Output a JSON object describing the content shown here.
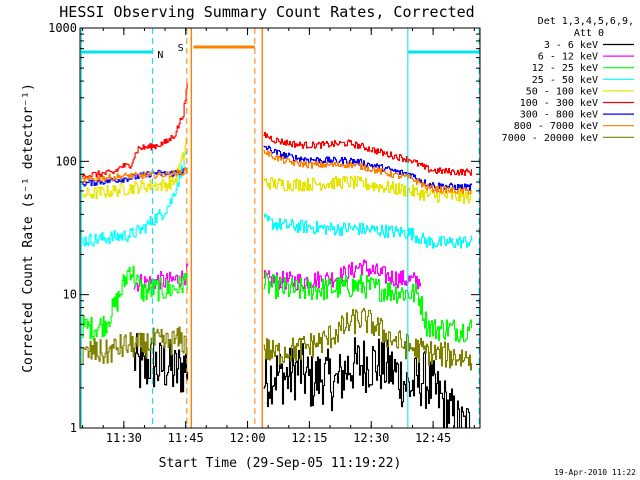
{
  "chart_data": {
    "type": "line",
    "title": "HESSI Observing Summary Count Rates, Corrected",
    "xlabel": "Start Time (29-Sep-05 11:19:22)",
    "ylabel": "Corrected Count Rate (s⁻¹ detector⁻¹)",
    "x_unit": "minutes after 11:19:22",
    "xlim": [
      0,
      97
    ],
    "ylim": [
      1,
      1000
    ],
    "yscale": "log",
    "grid": false,
    "legend_position": "right",
    "legend_header": [
      "Det 1,3,4,5,6,9,",
      "Att 0"
    ],
    "xticks": [
      {
        "label": "11:30",
        "x": 10.63
      },
      {
        "label": "11:45",
        "x": 25.63
      },
      {
        "label": "12:00",
        "x": 40.63
      },
      {
        "label": "12:15",
        "x": 55.63
      },
      {
        "label": "12:30",
        "x": 70.63
      },
      {
        "label": "12:45",
        "x": 85.63
      }
    ],
    "yticks": [
      {
        "label": "1",
        "y": 1
      },
      {
        "label": "10",
        "y": 10
      },
      {
        "label": "100",
        "y": 100
      },
      {
        "label": "1000",
        "y": 1000
      }
    ],
    "annotations": [
      {
        "text": "N",
        "x": 19.5,
        "y": 640,
        "color": "#00e5e5"
      },
      {
        "text": "S",
        "x": 24.4,
        "y": 720,
        "color": "#ff8000"
      }
    ],
    "night_markers": {
      "color": "#00e5e5",
      "solid_x": [
        0.3,
        79.5
      ],
      "dashed_x": [
        17.6,
        96.8
      ],
      "bars": [
        {
          "x": [
            0.3,
            17.6
          ],
          "y": 660
        },
        {
          "x": [
            79.5,
            96.8
          ],
          "y": 660
        }
      ]
    },
    "saa_markers": {
      "color": "#ff8000",
      "solid_x": [
        27.0,
        44.2
      ],
      "dashed_x": [
        25.9,
        42.4
      ],
      "bar": {
        "x": [
          27.5,
          42.4
        ],
        "y": 720
      }
    },
    "series": [
      {
        "name": "3 - 6 keV",
        "color": "#000000",
        "segments": [
          {
            "x": [
              13,
              15,
              17,
              19,
              21,
              23,
              26.2
            ],
            "y": [
              3.4,
              2.6,
              3.2,
              2.8,
              3.0,
              2.6,
              3.0
            ]
          },
          {
            "x": [
              44.5,
              47,
              50,
              53,
              56,
              59,
              62,
              65,
              68,
              71,
              74,
              77,
              80,
              83,
              86,
              89,
              92,
              95
            ],
            "y": [
              2.2,
              2.6,
              2.4,
              2.8,
              2.2,
              2.5,
              2.1,
              2.9,
              3.0,
              3.1,
              2.9,
              2.5,
              2.0,
              2.4,
              1.9,
              1.4,
              1.0,
              1.0
            ]
          }
        ]
      },
      {
        "name": "6 - 12 keV",
        "color": "#ff00ff",
        "segments": [
          {
            "x": [
              13,
              15,
              17,
              19,
              21,
              23,
              25,
              26.2
            ],
            "y": [
              12.0,
              12.5,
              12.3,
              12.8,
              12.5,
              12.9,
              13.5,
              15.0
            ]
          },
          {
            "x": [
              44.5,
              47,
              50,
              53,
              56,
              59,
              62,
              65,
              68,
              71,
              74,
              77,
              80,
              82.8
            ],
            "y": [
              13.0,
              12.8,
              12.7,
              12.6,
              12.9,
              13.0,
              13.5,
              14.5,
              16.5,
              15.0,
              13.8,
              13.2,
              12.8,
              12.5
            ]
          }
        ]
      },
      {
        "name": "12 - 25 keV",
        "color": "#00ff00",
        "segments": [
          {
            "x": [
              0.5,
              3,
              6,
              9,
              12,
              15,
              18,
              21,
              24,
              26.2
            ],
            "y": [
              5.8,
              5.6,
              6.0,
              9.0,
              16.0,
              10.5,
              11.0,
              10.8,
              11.5,
              13.5
            ]
          },
          {
            "x": [
              44.5,
              47,
              50,
              53,
              56,
              59,
              62,
              65,
              68,
              71,
              74,
              77,
              80,
              82,
              84,
              86,
              89,
              92,
              95
            ],
            "y": [
              12.0,
              11.5,
              11.0,
              10.8,
              11.0,
              11.0,
              11.2,
              11.5,
              11.7,
              11.2,
              10.8,
              10.5,
              10.3,
              10.0,
              6.0,
              5.5,
              5.6,
              5.4,
              5.6
            ]
          }
        ]
      },
      {
        "name": "25 - 50 keV",
        "color": "#00ffff",
        "segments": [
          {
            "x": [
              0.5,
              4,
              8,
              12,
              15,
              18,
              20,
              22,
              24,
              25.5,
              26.2
            ],
            "y": [
              25.5,
              26.0,
              27.0,
              28.0,
              31.0,
              37.0,
              41.0,
              50.0,
              75.0,
              110.0,
              140.0
            ]
          },
          {
            "x": [
              44.5,
              47,
              50,
              53,
              56,
              59,
              62,
              65,
              68,
              71,
              74,
              77,
              80,
              82,
              84,
              86,
              89,
              92,
              95
            ],
            "y": [
              36.0,
              34.0,
              33.0,
              32.5,
              32.0,
              31.5,
              31.0,
              31.5,
              31.0,
              30.5,
              30.0,
              29.5,
              29.0,
              27.0,
              25.0,
              24.5,
              24.5,
              24.8,
              25.0
            ]
          }
        ]
      },
      {
        "name": "50 - 100 keV",
        "color": "#e5e500",
        "segments": [
          {
            "x": [
              0.5,
              4,
              8,
              12,
              15,
              18,
              21,
              23,
              25,
              26.2
            ],
            "y": [
              56.0,
              58.0,
              60.0,
              63.0,
              65.0,
              66.0,
              67.0,
              72.0,
              110.0,
              170.0
            ]
          },
          {
            "x": [
              44.5,
              47,
              50,
              53,
              56,
              59,
              62,
              65,
              68,
              71,
              74,
              77,
              80,
              82,
              84,
              86,
              89,
              92,
              95
            ],
            "y": [
              70.0,
              68.0,
              67.0,
              67.0,
              67.5,
              68.0,
              69.0,
              70.0,
              68.0,
              66.0,
              64.0,
              62.0,
              60.0,
              58.0,
              56.0,
              55.0,
              55.0,
              54.0,
              54.0
            ]
          }
        ]
      },
      {
        "name": "100 - 300 keV",
        "color": "#ff0000",
        "segments": [
          {
            "x": [
              0.5,
              4,
              8,
              10,
              12,
              14,
              18,
              21,
              23,
              25,
              26.2
            ],
            "y": [
              78.0,
              80.0,
              82.0,
              92.0,
              92.0,
              125.0,
              130.0,
              140.0,
              160.0,
              230.0,
              420.0
            ]
          },
          {
            "x": [
              44.5,
              47,
              50,
              53,
              56,
              59,
              62,
              65,
              68,
              71,
              74,
              77,
              80,
              82,
              84,
              86,
              89,
              92,
              95
            ],
            "y": [
              160.0,
              145.0,
              138.0,
              133.0,
              132.0,
              133.0,
              135.0,
              137.0,
              130.0,
              122.0,
              114.0,
              108.0,
              103.0,
              95.0,
              88.0,
              85.0,
              84.0,
              83.0,
              83.0
            ]
          }
        ]
      },
      {
        "name": "300 - 800 keV",
        "color": "#0000ff",
        "segments": [
          {
            "x": [
              0.5,
              4,
              8,
              12,
              15,
              18,
              21,
              24,
              26.2
            ],
            "y": [
              68.0,
              70.0,
              72.0,
              75.0,
              78.0,
              82.0,
              80.0,
              83.0,
              86.0
            ]
          },
          {
            "x": [
              44.5,
              47,
              50,
              53,
              56,
              59,
              62,
              65,
              68,
              71,
              74,
              77,
              80,
              82,
              84,
              86,
              89,
              92,
              95
            ],
            "y": [
              130.0,
              118.0,
              110.0,
              105.0,
              103.0,
              102.0,
              101.0,
              102.0,
              98.0,
              93.0,
              88.0,
              83.0,
              80.0,
              74.0,
              68.0,
              66.0,
              65.0,
              64.0,
              64.0
            ]
          }
        ]
      },
      {
        "name": "800 - 7000 keV",
        "color": "#ff8000",
        "segments": [
          {
            "x": [
              0.5,
              4,
              8,
              12,
              15,
              18,
              21,
              24,
              26.2
            ],
            "y": [
              72.0,
              74.0,
              76.0,
              78.0,
              78.0,
              79.0,
              80.0,
              82.0,
              86.0
            ]
          },
          {
            "x": [
              44.5,
              47,
              50,
              53,
              56,
              59,
              62,
              65,
              68,
              71,
              74,
              77,
              80,
              82,
              84,
              86,
              89,
              92,
              95
            ],
            "y": [
              120.0,
              108.0,
              100.0,
              96.0,
              94.0,
              94.0,
              94.0,
              95.0,
              92.0,
              87.0,
              82.0,
              78.0,
              75.0,
              70.0,
              64.0,
              62.0,
              61.0,
              60.0,
              60.0
            ]
          }
        ]
      },
      {
        "name": "7000 - 20000 keV",
        "color": "#808000",
        "segments": [
          {
            "x": [
              0.5,
              3,
              6,
              9,
              12,
              15,
              18,
              21,
              24,
              26.2
            ],
            "y": [
              3.4,
              3.8,
              3.6,
              4.0,
              4.2,
              4.1,
              4.5,
              4.3,
              4.6,
              4.2
            ]
          },
          {
            "x": [
              44.5,
              47,
              50,
              53,
              56,
              59,
              62,
              65,
              68,
              71,
              74,
              77,
              80,
              83,
              86,
              89,
              92,
              95
            ],
            "y": [
              4.0,
              3.6,
              3.8,
              3.9,
              4.2,
              4.5,
              5.2,
              6.0,
              6.6,
              6.0,
              5.0,
              4.4,
              4.0,
              3.8,
              3.6,
              3.5,
              3.4,
              3.4
            ]
          }
        ]
      }
    ]
  },
  "footer_timestamp": "19-Apr-2010 11:22"
}
